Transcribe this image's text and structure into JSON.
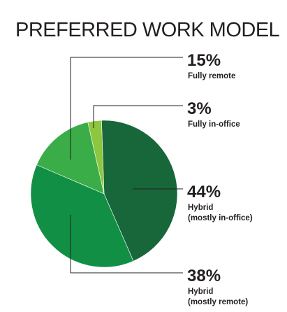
{
  "chart_data": {
    "type": "pie",
    "title": "PREFERRED WORK MODEL",
    "start_angle_deg": -2,
    "direction": "clockwise",
    "slices": [
      {
        "name": "44%",
        "label_lines": [
          "Hybrid",
          "(mostly in-office)"
        ],
        "value": 44,
        "color": "#17673a"
      },
      {
        "name": "38%",
        "label_lines": [
          "Hybrid",
          "(mostly remote)"
        ],
        "value": 38,
        "color": "#118f45"
      },
      {
        "name": "15%",
        "label_lines": [
          "Fully remote"
        ],
        "value": 15,
        "color": "#3aac48"
      },
      {
        "name": "3%",
        "label_lines": [
          "Fully in-office"
        ],
        "value": 3,
        "color": "#8dc63f"
      }
    ]
  }
}
